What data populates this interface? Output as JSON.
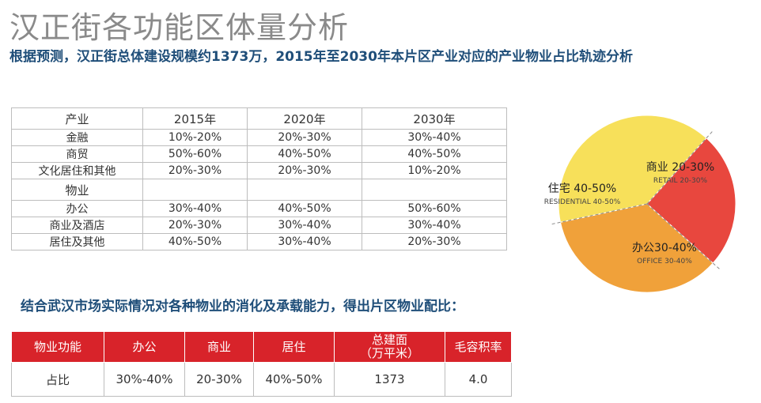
{
  "page": {
    "title": "汉正街各功能区体量分析",
    "subtitle": "根据预测，汉正街总体建设规模约1373万，2015年至2030年本片区产业对应的产业物业占比轨迹分析"
  },
  "industry_table": {
    "header": [
      "产业",
      "2015年",
      "2020年",
      "2030年"
    ],
    "industry_rows": [
      [
        "金融",
        "10%-20%",
        "20%-30%",
        "30%-40%"
      ],
      [
        "商贸",
        "50%-60%",
        "40%-50%",
        "40%-50%"
      ],
      [
        "文化居住和其他",
        "20%-30%",
        "20%-30%",
        "10%-20%"
      ]
    ],
    "property_label": "物业",
    "property_rows": [
      [
        "办公",
        "30%-40%",
        "40%-50%",
        "50%-60%"
      ],
      [
        "商业及酒店",
        "20%-30%",
        "30%-40%",
        "30%-40%"
      ],
      [
        "居住及其他",
        "40%-50%",
        "30%-40%",
        "20%-30%"
      ]
    ]
  },
  "conclusion": "结合武汉市场实际情况对各种物业的消化及承载能力，得出片区物业配比：",
  "ratio_table": {
    "headers": [
      "物业功能",
      "办公",
      "商业",
      "居住",
      "总建面\n（万平米）",
      "毛容积率"
    ],
    "row": [
      "占比",
      "30%-40%",
      "20-30%",
      "40%-50%",
      "1373",
      "4.0"
    ]
  },
  "chart_data": {
    "type": "pie",
    "slices": [
      {
        "label": "商业 20-30%",
        "sublabel": "RETAIL 20-30%",
        "value": 25,
        "color": "#e8473e"
      },
      {
        "label": "办公30-40%",
        "sublabel": "OFFICE 30-40%",
        "value": 35,
        "color": "#f0a13a"
      },
      {
        "label": "住宅 40-50%",
        "sublabel": "RESIDENTIAL 40-50%",
        "value": 40,
        "color": "#f7e05a"
      }
    ]
  }
}
